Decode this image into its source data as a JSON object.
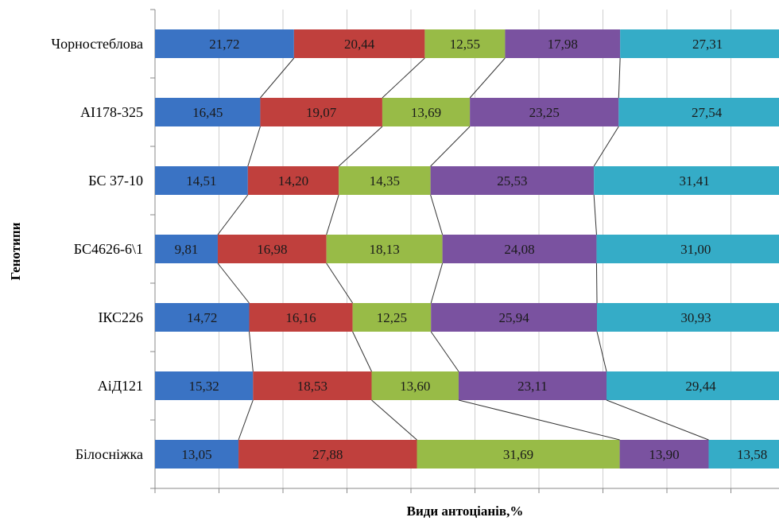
{
  "chart_data": {
    "type": "bar",
    "orientation": "horizontal",
    "stacked": true,
    "normalized_percent": true,
    "xlabel": "Види антоціанів,%",
    "ylabel": "Генотипи",
    "xlim": [
      0,
      100
    ],
    "grid": true,
    "legend": "none",
    "connector_lines": true,
    "categories": [
      "Чорностеблова",
      "АІ178-325",
      "БС 37-10",
      "БС4626-6\\1",
      "ІКС226",
      "АіД121",
      "Білосніжка"
    ],
    "series": [
      {
        "color": "#3a73c4",
        "values": [
          21.72,
          16.45,
          14.51,
          9.81,
          14.72,
          15.32,
          13.05
        ],
        "labels": [
          "21,72",
          "16,45",
          "14,51",
          "9,81",
          "14,72",
          "15,32",
          "13,05"
        ]
      },
      {
        "color": "#c0403d",
        "values": [
          20.44,
          19.07,
          14.2,
          16.98,
          16.16,
          18.53,
          27.88
        ],
        "labels": [
          "20,44",
          "19,07",
          "14,20",
          "16,98",
          "16,16",
          "18,53",
          "27,88"
        ]
      },
      {
        "color": "#98bb47",
        "values": [
          12.55,
          13.69,
          14.35,
          18.13,
          12.25,
          13.6,
          31.69
        ],
        "labels": [
          "12,55",
          "13,69",
          "14,35",
          "18,13",
          "12,25",
          "13,60",
          "31,69"
        ]
      },
      {
        "color": "#7a52a0",
        "values": [
          17.98,
          23.25,
          25.53,
          24.08,
          25.94,
          23.11,
          13.9
        ],
        "labels": [
          "17,98",
          "23,25",
          "25,53",
          "24,08",
          "25,94",
          "23,11",
          "13,90"
        ]
      },
      {
        "color": "#35acc7",
        "values": [
          27.31,
          27.54,
          31.41,
          31.0,
          30.93,
          29.44,
          13.58
        ],
        "labels": [
          "27,31",
          "27,54",
          "31,41",
          "31,00",
          "30,93",
          "29,44",
          "13,58"
        ]
      }
    ]
  }
}
